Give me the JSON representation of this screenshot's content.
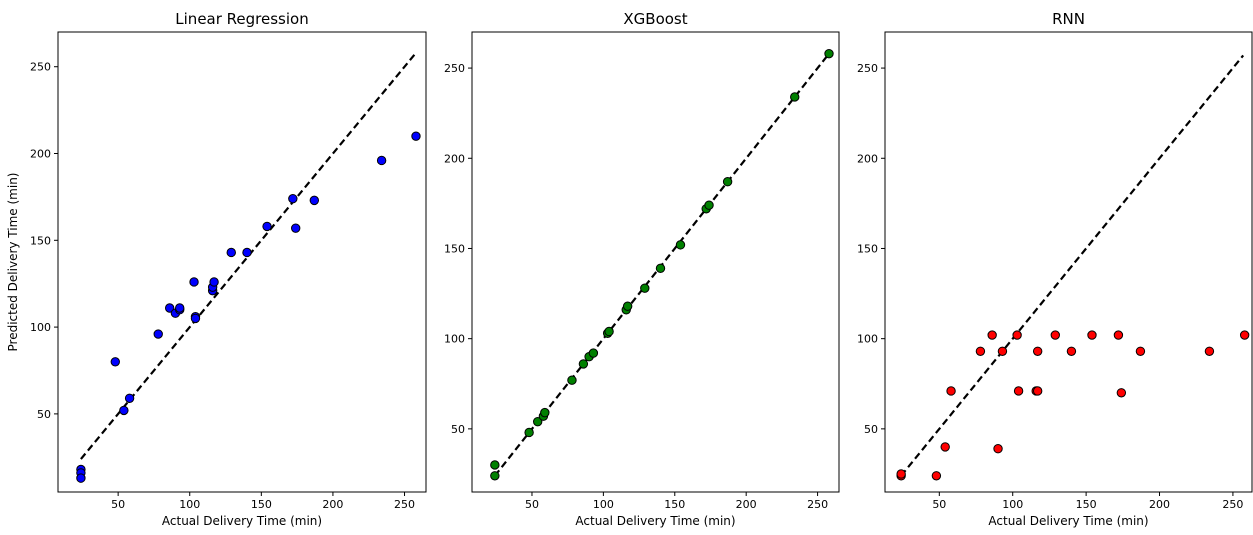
{
  "chart_data": [
    {
      "type": "scatter",
      "title": "Linear Regression",
      "xlabel": "Actual Delivery Time (min)",
      "ylabel": "Predicted Delivery Time (min)",
      "xlim": [
        8,
        265
      ],
      "ylim": [
        5,
        270
      ],
      "xticks": [
        50,
        100,
        150,
        200,
        250
      ],
      "yticks": [
        50,
        100,
        150,
        200,
        250
      ],
      "grid": false,
      "marker_color": "#0000ff",
      "reference_line": {
        "x": [
          24,
          257
        ],
        "y": [
          24,
          257
        ],
        "style": "dashed",
        "color": "#000000"
      },
      "x": [
        24,
        24,
        24,
        48,
        54,
        58,
        78,
        86,
        90,
        93,
        93,
        103,
        104,
        104,
        116,
        116,
        117,
        129,
        140,
        154,
        172,
        174,
        187,
        234,
        258
      ],
      "y": [
        18,
        16,
        13,
        80,
        52,
        59,
        96,
        111,
        108,
        110,
        111,
        126,
        106,
        105,
        121,
        123,
        126,
        143,
        143,
        158,
        174,
        157,
        173,
        196,
        210
      ]
    },
    {
      "type": "scatter",
      "title": "XGBoost",
      "xlabel": "Actual Delivery Time (min)",
      "ylabel": "",
      "xlim": [
        8,
        265
      ],
      "ylim": [
        15,
        270
      ],
      "xticks": [
        50,
        100,
        150,
        200,
        250
      ],
      "yticks": [
        50,
        100,
        150,
        200,
        250
      ],
      "grid": false,
      "marker_color": "#008000",
      "reference_line": {
        "x": [
          24,
          257
        ],
        "y": [
          24,
          257
        ],
        "style": "dashed",
        "color": "#000000"
      },
      "x": [
        24,
        24,
        48,
        54,
        58,
        59,
        78,
        86,
        90,
        93,
        103,
        104,
        116,
        117,
        129,
        140,
        154,
        172,
        174,
        187,
        234,
        258
      ],
      "y": [
        30,
        24,
        48,
        54,
        57,
        59,
        77,
        86,
        90,
        92,
        103,
        104,
        116,
        118,
        128,
        139,
        152,
        172,
        174,
        187,
        234,
        258
      ]
    },
    {
      "type": "scatter",
      "title": "RNN",
      "xlabel": "Actual Delivery Time (min)",
      "ylabel": "",
      "xlim": [
        13,
        263
      ],
      "ylim": [
        15,
        270
      ],
      "xticks": [
        50,
        100,
        150,
        200,
        250
      ],
      "yticks": [
        50,
        100,
        150,
        200,
        250
      ],
      "grid": false,
      "marker_color": "#ff0000",
      "reference_line": {
        "x": [
          24,
          257
        ],
        "y": [
          24,
          257
        ],
        "style": "dashed",
        "color": "#000000"
      },
      "x": [
        24,
        24,
        48,
        54,
        58,
        78,
        86,
        90,
        93,
        103,
        104,
        116,
        117,
        117,
        129,
        140,
        154,
        172,
        174,
        187,
        234,
        258
      ],
      "y": [
        24,
        25,
        24,
        40,
        71,
        93,
        102,
        39,
        93,
        102,
        71,
        71,
        71,
        93,
        102,
        93,
        102,
        102,
        70,
        93,
        93,
        102
      ]
    }
  ]
}
